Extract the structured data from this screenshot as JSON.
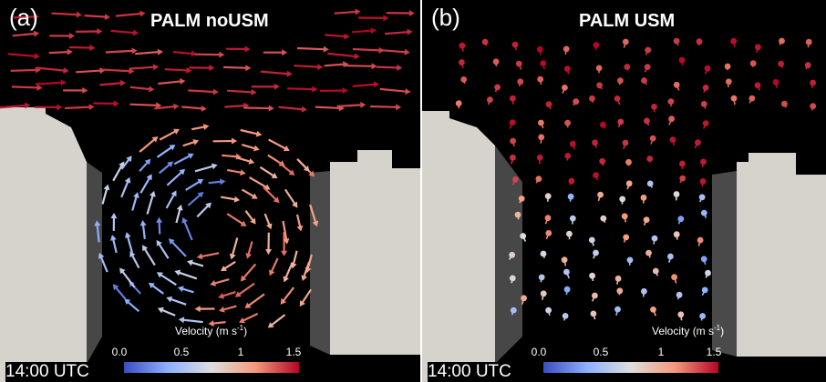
{
  "panels": [
    {
      "id": "a",
      "letter": "(a)",
      "title": "PALM noUSM",
      "time": "14:00 UTC",
      "colorbar": {
        "title": "Velocity (m s",
        "title_sup": "-1",
        "title_close": ")",
        "ticks": [
          "0.0",
          "0.5",
          "1",
          "1.5"
        ]
      }
    },
    {
      "id": "b",
      "letter": "(b)",
      "title": "PALM USM",
      "time": "14:00 UTC",
      "colorbar": {
        "title": "Velocity (m s",
        "title_sup": "-1",
        "title_close": ")",
        "ticks": [
          "0.0",
          "0.5",
          "1",
          "1.5"
        ]
      }
    }
  ],
  "colors": {
    "background": "#000000",
    "building_light": "#d6d3cc",
    "building_shadow": "#4a4a4a",
    "low_velocity": "#3b4cc0",
    "mid_velocity": "#dddddd",
    "high_velocity": "#b40426"
  }
}
